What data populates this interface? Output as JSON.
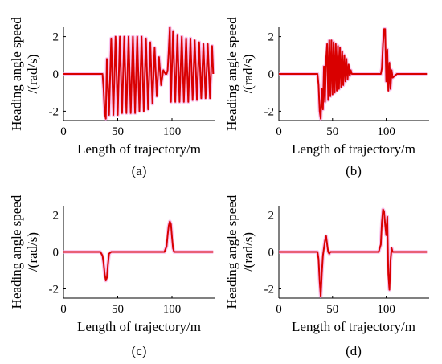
{
  "chart_data": [
    {
      "type": "line",
      "caption": "(a)",
      "xlabel": "Length of trajectory/m",
      "ylabel_line1": "Heading angle speed",
      "ylabel_line2": "/(rad/s)",
      "xlim": [
        0,
        140
      ],
      "ylim": [
        -2.5,
        2.5
      ],
      "xticks": [
        "0",
        "50",
        "100"
      ],
      "yticks": [
        "2",
        "0",
        "-2"
      ],
      "series": [
        {
          "color": "#d90000",
          "x": [
            0,
            36,
            37,
            38,
            39,
            40,
            42,
            44,
            46,
            48,
            50,
            52,
            54,
            56,
            58,
            60,
            62,
            64,
            66,
            68,
            70,
            72,
            74,
            76,
            78,
            80,
            82,
            84,
            86,
            88,
            90,
            92,
            94,
            95,
            96,
            97,
            98,
            99,
            101,
            103,
            105,
            107,
            109,
            111,
            113,
            115,
            117,
            119,
            121,
            123,
            125,
            127,
            129,
            131,
            133,
            135,
            137,
            138
          ],
          "y": [
            0,
            0,
            -0.8,
            -2.1,
            -2.4,
            0.8,
            -2.2,
            1.9,
            -2.2,
            2.0,
            -2.2,
            2.0,
            -2.1,
            2.0,
            -2.1,
            2.0,
            -2.1,
            2.0,
            -2.1,
            2.0,
            -2.0,
            2.0,
            -2.0,
            1.9,
            -1.9,
            1.7,
            -1.6,
            1.4,
            -1.2,
            0.9,
            -0.6,
            0.2,
            0,
            0,
            0.2,
            1.2,
            2.5,
            -1.5,
            2.3,
            -1.5,
            2.1,
            -1.5,
            2.0,
            -1.5,
            1.9,
            -1.5,
            1.9,
            -1.4,
            1.8,
            -1.4,
            1.7,
            -1.3,
            1.6,
            -1.3,
            1.6,
            -1.3,
            1.5,
            0
          ]
        }
      ]
    },
    {
      "type": "line",
      "caption": "(b)",
      "xlabel": "Length of trajectory/m",
      "ylabel_line1": "Heading angle speed",
      "ylabel_line2": "/(rad/s)",
      "xlim": [
        0,
        140
      ],
      "ylim": [
        -2.5,
        2.5
      ],
      "xticks": [
        "0",
        "50",
        "100"
      ],
      "yticks": [
        "2",
        "0",
        "-2"
      ],
      "series": [
        {
          "color": "#d90000",
          "x": [
            0,
            36,
            37,
            38,
            39,
            40,
            41,
            42,
            43,
            44,
            45,
            46,
            47,
            48,
            49,
            50,
            51,
            52,
            53,
            54,
            55,
            56,
            57,
            58,
            59,
            60,
            61,
            62,
            63,
            64,
            65,
            66,
            67,
            68,
            95,
            96,
            97,
            98,
            99,
            100,
            101,
            102,
            103,
            104,
            105,
            106,
            110,
            138
          ],
          "y": [
            0,
            0,
            -0.6,
            -2.0,
            -2.4,
            -0.8,
            -1.9,
            0.4,
            -1.5,
            0.8,
            1.6,
            -1.4,
            1.8,
            -1.2,
            1.8,
            -1.1,
            1.7,
            -1.0,
            1.6,
            -0.9,
            1.5,
            -0.8,
            1.4,
            -0.7,
            1.2,
            -0.6,
            1.0,
            -0.4,
            0.8,
            -0.3,
            0.5,
            -0.1,
            0.2,
            0,
            0,
            0.3,
            1.6,
            2.4,
            2.4,
            -0.4,
            1.3,
            -0.9,
            0.6,
            -0.8,
            0.2,
            -0.2,
            0,
            0
          ]
        }
      ]
    },
    {
      "type": "line",
      "caption": "(c)",
      "xlabel": "Length of trajectory/m",
      "ylabel_line1": "Heading angle speed",
      "ylabel_line2": "/(rad/s)",
      "xlim": [
        0,
        140
      ],
      "ylim": [
        -2.5,
        2.5
      ],
      "xticks": [
        "0",
        "50",
        "100"
      ],
      "yticks": [
        "2",
        "0",
        "-2"
      ],
      "series": [
        {
          "color": "#d90000",
          "x": [
            0,
            34,
            36,
            37,
            38,
            39,
            40,
            41,
            42,
            44,
            93,
            95,
            96,
            97,
            98,
            99,
            100,
            101,
            102,
            104,
            138
          ],
          "y": [
            0,
            0,
            -0.2,
            -0.6,
            -1.2,
            -1.55,
            -1.4,
            -0.7,
            -0.1,
            0,
            0,
            0.3,
            0.9,
            1.4,
            1.65,
            1.5,
            0.8,
            0.2,
            0,
            0,
            0
          ]
        }
      ]
    },
    {
      "type": "line",
      "caption": "(d)",
      "xlabel": "Length of trajectory/m",
      "ylabel_line1": "Heading angle speed",
      "ylabel_line2": "/(rad/s)",
      "xlim": [
        0,
        140
      ],
      "ylim": [
        -2.5,
        2.5
      ],
      "xticks": [
        "0",
        "50",
        "100"
      ],
      "yticks": [
        "2",
        "0",
        "-2"
      ],
      "series": [
        {
          "color": "#d90000",
          "x": [
            0,
            36,
            37,
            38,
            39,
            40,
            41,
            42,
            43,
            44,
            45,
            46,
            47,
            48,
            93,
            95,
            96,
            97,
            98,
            99,
            100,
            101,
            102,
            103,
            104,
            105,
            106,
            108,
            138
          ],
          "y": [
            0,
            0,
            -0.4,
            -1.6,
            -2.4,
            -1.2,
            -0.2,
            0.2,
            0.6,
            0.85,
            0.4,
            0,
            -0.1,
            0,
            0,
            0.4,
            1.6,
            2.3,
            2.2,
            1.5,
            0.9,
            1.9,
            -1.2,
            -2.05,
            -0.5,
            0.2,
            0,
            0,
            0
          ]
        }
      ]
    }
  ]
}
